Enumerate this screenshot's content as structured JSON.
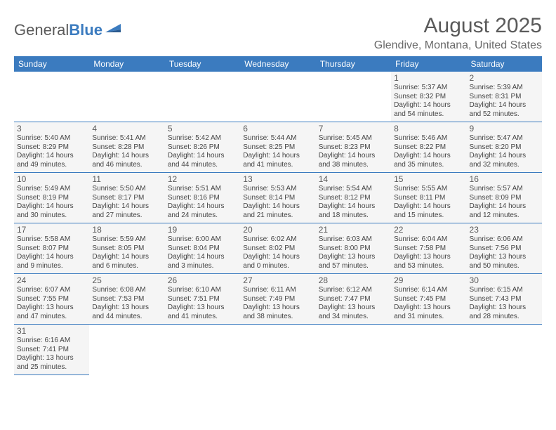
{
  "brand": {
    "part1": "General",
    "part2": "Blue"
  },
  "title": "August 2025",
  "location": "Glendive, Montana, United States",
  "colors": {
    "header_bg": "#3b7bbf",
    "header_text": "#ffffff",
    "cell_bg": "#f5f5f5",
    "border": "#3b7bbf",
    "text": "#444444",
    "title_text": "#5a5a5a"
  },
  "weekdays": [
    "Sunday",
    "Monday",
    "Tuesday",
    "Wednesday",
    "Thursday",
    "Friday",
    "Saturday"
  ],
  "weeks": [
    [
      null,
      null,
      null,
      null,
      null,
      {
        "n": "1",
        "sr": "Sunrise: 5:37 AM",
        "ss": "Sunset: 8:32 PM",
        "d1": "Daylight: 14 hours",
        "d2": "and 54 minutes."
      },
      {
        "n": "2",
        "sr": "Sunrise: 5:39 AM",
        "ss": "Sunset: 8:31 PM",
        "d1": "Daylight: 14 hours",
        "d2": "and 52 minutes."
      }
    ],
    [
      {
        "n": "3",
        "sr": "Sunrise: 5:40 AM",
        "ss": "Sunset: 8:29 PM",
        "d1": "Daylight: 14 hours",
        "d2": "and 49 minutes."
      },
      {
        "n": "4",
        "sr": "Sunrise: 5:41 AM",
        "ss": "Sunset: 8:28 PM",
        "d1": "Daylight: 14 hours",
        "d2": "and 46 minutes."
      },
      {
        "n": "5",
        "sr": "Sunrise: 5:42 AM",
        "ss": "Sunset: 8:26 PM",
        "d1": "Daylight: 14 hours",
        "d2": "and 44 minutes."
      },
      {
        "n": "6",
        "sr": "Sunrise: 5:44 AM",
        "ss": "Sunset: 8:25 PM",
        "d1": "Daylight: 14 hours",
        "d2": "and 41 minutes."
      },
      {
        "n": "7",
        "sr": "Sunrise: 5:45 AM",
        "ss": "Sunset: 8:23 PM",
        "d1": "Daylight: 14 hours",
        "d2": "and 38 minutes."
      },
      {
        "n": "8",
        "sr": "Sunrise: 5:46 AM",
        "ss": "Sunset: 8:22 PM",
        "d1": "Daylight: 14 hours",
        "d2": "and 35 minutes."
      },
      {
        "n": "9",
        "sr": "Sunrise: 5:47 AM",
        "ss": "Sunset: 8:20 PM",
        "d1": "Daylight: 14 hours",
        "d2": "and 32 minutes."
      }
    ],
    [
      {
        "n": "10",
        "sr": "Sunrise: 5:49 AM",
        "ss": "Sunset: 8:19 PM",
        "d1": "Daylight: 14 hours",
        "d2": "and 30 minutes."
      },
      {
        "n": "11",
        "sr": "Sunrise: 5:50 AM",
        "ss": "Sunset: 8:17 PM",
        "d1": "Daylight: 14 hours",
        "d2": "and 27 minutes."
      },
      {
        "n": "12",
        "sr": "Sunrise: 5:51 AM",
        "ss": "Sunset: 8:16 PM",
        "d1": "Daylight: 14 hours",
        "d2": "and 24 minutes."
      },
      {
        "n": "13",
        "sr": "Sunrise: 5:53 AM",
        "ss": "Sunset: 8:14 PM",
        "d1": "Daylight: 14 hours",
        "d2": "and 21 minutes."
      },
      {
        "n": "14",
        "sr": "Sunrise: 5:54 AM",
        "ss": "Sunset: 8:12 PM",
        "d1": "Daylight: 14 hours",
        "d2": "and 18 minutes."
      },
      {
        "n": "15",
        "sr": "Sunrise: 5:55 AM",
        "ss": "Sunset: 8:11 PM",
        "d1": "Daylight: 14 hours",
        "d2": "and 15 minutes."
      },
      {
        "n": "16",
        "sr": "Sunrise: 5:57 AM",
        "ss": "Sunset: 8:09 PM",
        "d1": "Daylight: 14 hours",
        "d2": "and 12 minutes."
      }
    ],
    [
      {
        "n": "17",
        "sr": "Sunrise: 5:58 AM",
        "ss": "Sunset: 8:07 PM",
        "d1": "Daylight: 14 hours",
        "d2": "and 9 minutes."
      },
      {
        "n": "18",
        "sr": "Sunrise: 5:59 AM",
        "ss": "Sunset: 8:05 PM",
        "d1": "Daylight: 14 hours",
        "d2": "and 6 minutes."
      },
      {
        "n": "19",
        "sr": "Sunrise: 6:00 AM",
        "ss": "Sunset: 8:04 PM",
        "d1": "Daylight: 14 hours",
        "d2": "and 3 minutes."
      },
      {
        "n": "20",
        "sr": "Sunrise: 6:02 AM",
        "ss": "Sunset: 8:02 PM",
        "d1": "Daylight: 14 hours",
        "d2": "and 0 minutes."
      },
      {
        "n": "21",
        "sr": "Sunrise: 6:03 AM",
        "ss": "Sunset: 8:00 PM",
        "d1": "Daylight: 13 hours",
        "d2": "and 57 minutes."
      },
      {
        "n": "22",
        "sr": "Sunrise: 6:04 AM",
        "ss": "Sunset: 7:58 PM",
        "d1": "Daylight: 13 hours",
        "d2": "and 53 minutes."
      },
      {
        "n": "23",
        "sr": "Sunrise: 6:06 AM",
        "ss": "Sunset: 7:56 PM",
        "d1": "Daylight: 13 hours",
        "d2": "and 50 minutes."
      }
    ],
    [
      {
        "n": "24",
        "sr": "Sunrise: 6:07 AM",
        "ss": "Sunset: 7:55 PM",
        "d1": "Daylight: 13 hours",
        "d2": "and 47 minutes."
      },
      {
        "n": "25",
        "sr": "Sunrise: 6:08 AM",
        "ss": "Sunset: 7:53 PM",
        "d1": "Daylight: 13 hours",
        "d2": "and 44 minutes."
      },
      {
        "n": "26",
        "sr": "Sunrise: 6:10 AM",
        "ss": "Sunset: 7:51 PM",
        "d1": "Daylight: 13 hours",
        "d2": "and 41 minutes."
      },
      {
        "n": "27",
        "sr": "Sunrise: 6:11 AM",
        "ss": "Sunset: 7:49 PM",
        "d1": "Daylight: 13 hours",
        "d2": "and 38 minutes."
      },
      {
        "n": "28",
        "sr": "Sunrise: 6:12 AM",
        "ss": "Sunset: 7:47 PM",
        "d1": "Daylight: 13 hours",
        "d2": "and 34 minutes."
      },
      {
        "n": "29",
        "sr": "Sunrise: 6:14 AM",
        "ss": "Sunset: 7:45 PM",
        "d1": "Daylight: 13 hours",
        "d2": "and 31 minutes."
      },
      {
        "n": "30",
        "sr": "Sunrise: 6:15 AM",
        "ss": "Sunset: 7:43 PM",
        "d1": "Daylight: 13 hours",
        "d2": "and 28 minutes."
      }
    ],
    [
      {
        "n": "31",
        "sr": "Sunrise: 6:16 AM",
        "ss": "Sunset: 7:41 PM",
        "d1": "Daylight: 13 hours",
        "d2": "and 25 minutes."
      },
      null,
      null,
      null,
      null,
      null,
      null
    ]
  ]
}
